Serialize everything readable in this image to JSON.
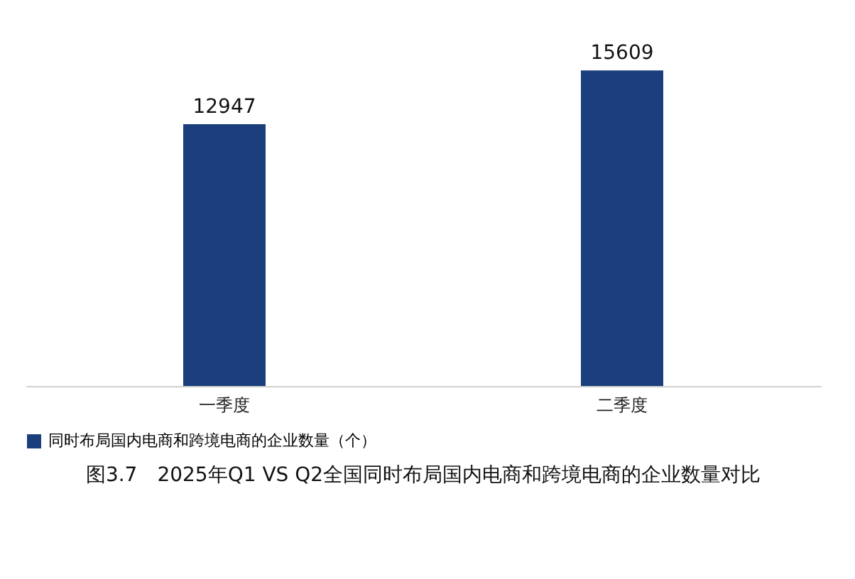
{
  "chart_data": {
    "type": "bar",
    "title": "图3.7　2025年Q1 VS Q2全国同时布局国内电商和跨境电商的企业数量对比",
    "categories": [
      "一季度",
      "二季度"
    ],
    "series": [
      {
        "name": "同时布局国内电商和跨境电商的企业数量（个）",
        "color": "#1b3f7c",
        "values": [
          12947,
          15609
        ]
      }
    ],
    "data_labels": true,
    "legend": "bottom",
    "grid": false
  }
}
